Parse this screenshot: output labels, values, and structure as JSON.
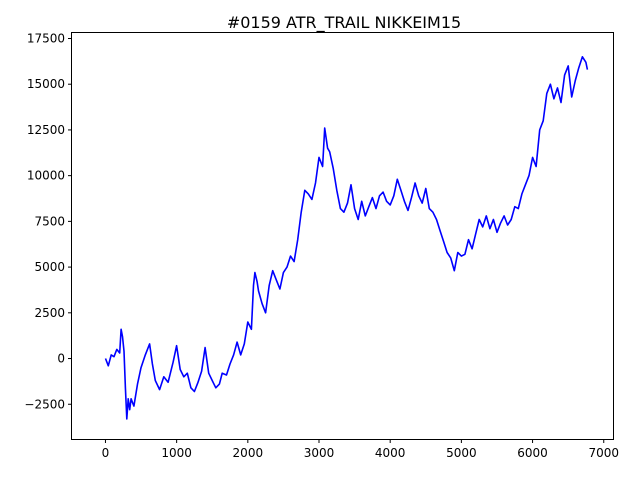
{
  "chart_data": {
    "type": "line",
    "title": "#0159 ATR_TRAIL NIKKEIM15",
    "xlabel": "",
    "ylabel": "",
    "xlim": [
      -470,
      7130
    ],
    "ylim": [
      -4400,
      17800
    ],
    "x_ticks": [
      0,
      1000,
      2000,
      3000,
      4000,
      5000,
      6000,
      7000
    ],
    "y_ticks": [
      -2500,
      0,
      2500,
      5000,
      7500,
      10000,
      12500,
      15000,
      17500
    ],
    "grid": false,
    "legend": "none",
    "series": [
      {
        "color": "#0000ff",
        "x": [
          0,
          40,
          80,
          120,
          160,
          200,
          220,
          240,
          260,
          280,
          300,
          320,
          340,
          360,
          400,
          450,
          500,
          560,
          620,
          660,
          700,
          760,
          820,
          880,
          950,
          1000,
          1050,
          1100,
          1150,
          1200,
          1250,
          1300,
          1350,
          1400,
          1450,
          1500,
          1550,
          1600,
          1640,
          1700,
          1750,
          1800,
          1850,
          1900,
          1950,
          2000,
          2050,
          2080,
          2100,
          2130,
          2150,
          2200,
          2250,
          2300,
          2350,
          2400,
          2450,
          2500,
          2550,
          2600,
          2650,
          2700,
          2750,
          2800,
          2850,
          2900,
          2950,
          3000,
          3050,
          3080,
          3120,
          3150,
          3200,
          3250,
          3300,
          3350,
          3400,
          3450,
          3500,
          3550,
          3600,
          3650,
          3700,
          3750,
          3800,
          3850,
          3900,
          3950,
          4000,
          4050,
          4100,
          4150,
          4200,
          4250,
          4300,
          4350,
          4400,
          4450,
          4500,
          4550,
          4600,
          4650,
          4700,
          4750,
          4800,
          4850,
          4900,
          4950,
          5000,
          5050,
          5100,
          5150,
          5200,
          5250,
          5300,
          5350,
          5400,
          5450,
          5500,
          5550,
          5600,
          5650,
          5700,
          5750,
          5800,
          5850,
          5900,
          5950,
          6000,
          6050,
          6100,
          6150,
          6200,
          6250,
          6300,
          6350,
          6400,
          6450,
          6500,
          6550,
          6600,
          6650,
          6700,
          6750,
          6770
        ],
        "y": [
          0,
          -400,
          200,
          100,
          500,
          300,
          1600,
          1200,
          400,
          -1600,
          -3300,
          -2200,
          -2800,
          -2200,
          -2600,
          -1400,
          -500,
          200,
          800,
          -300,
          -1200,
          -1700,
          -1000,
          -1300,
          -200,
          700,
          -600,
          -1000,
          -800,
          -1600,
          -1800,
          -1300,
          -700,
          600,
          -800,
          -1200,
          -1600,
          -1400,
          -800,
          -900,
          -300,
          200,
          900,
          200,
          800,
          2000,
          1600,
          4000,
          4700,
          4200,
          3700,
          3000,
          2500,
          4000,
          4800,
          4300,
          3800,
          4700,
          5000,
          5600,
          5300,
          6500,
          8000,
          9200,
          9000,
          8700,
          9600,
          11000,
          10500,
          12600,
          11500,
          11300,
          10400,
          9200,
          8200,
          8000,
          8500,
          9500,
          8200,
          7600,
          8600,
          7800,
          8300,
          8800,
          8200,
          8900,
          9100,
          8600,
          8400,
          8900,
          9800,
          9200,
          8600,
          8100,
          8800,
          9600,
          8900,
          8500,
          9300,
          8200,
          8000,
          7600,
          7000,
          6400,
          5800,
          5500,
          4800,
          5800,
          5600,
          5700,
          6500,
          6000,
          6800,
          7600,
          7200,
          7800,
          7100,
          7600,
          6900,
          7400,
          7800,
          7300,
          7600,
          8300,
          8200,
          9000,
          9500,
          10000,
          11000,
          10500,
          12500,
          13000,
          14500,
          15000,
          14200,
          14800,
          14000,
          15500,
          16000,
          14300,
          15200,
          15900,
          16500,
          16200,
          15800
        ]
      }
    ]
  }
}
